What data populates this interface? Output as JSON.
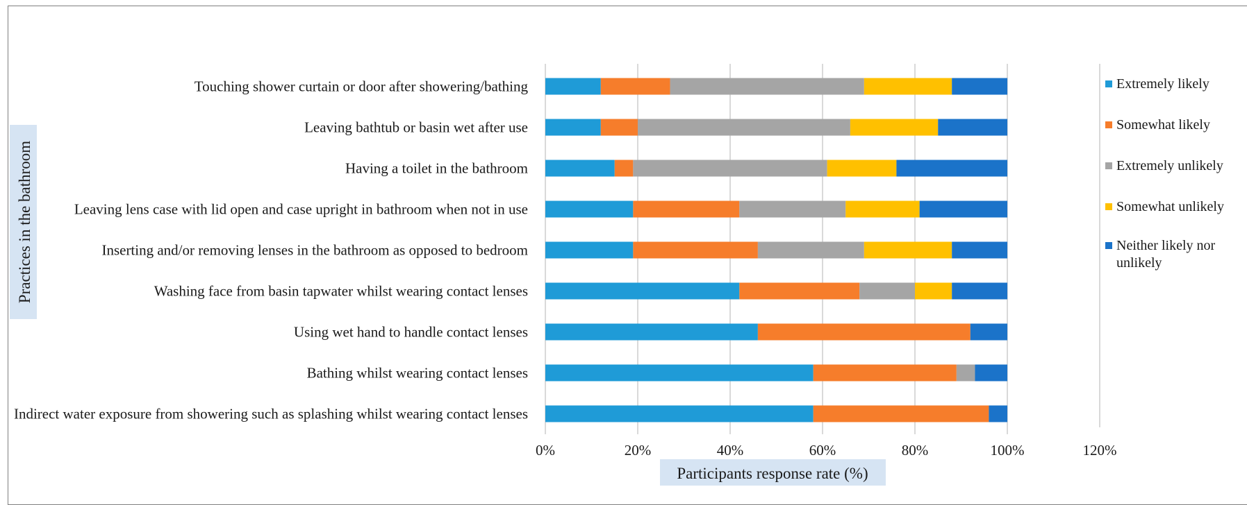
{
  "chart_data": {
    "type": "bar",
    "stacked": true,
    "orientation": "horizontal",
    "title": "",
    "xlabel": "Participants response rate (%)",
    "ylabel": "Practices in the bathroom",
    "xlim": [
      0,
      120
    ],
    "xticks": [
      "0%",
      "20%",
      "40%",
      "60%",
      "80%",
      "100%",
      "120%"
    ],
    "grid": "vertical",
    "legend_position": "right",
    "categories": [
      "Touching shower curtain or door after showering/bathing",
      "Leaving bathtub or basin wet after use",
      "Having a toilet in the bathroom",
      "Leaving lens case with lid open and case upright in bathroom when not in use",
      "Inserting and/or removing lenses in the bathroom as opposed to bedroom",
      "Washing face from basin tapwater whilst wearing contact lenses",
      "Using wet hand to handle contact lenses",
      "Bathing whilst wearing contact lenses",
      "Indirect water exposure from showering such as splashing whilst wearing contact lenses"
    ],
    "series": [
      {
        "name": "Extremely likely",
        "color": "#1f9bd7",
        "values": [
          12,
          12,
          15,
          19,
          19,
          42,
          46,
          58,
          58
        ]
      },
      {
        "name": "Somewhat likely",
        "color": "#f67d2b",
        "values": [
          15,
          8,
          4,
          23,
          27,
          26,
          46,
          31,
          38
        ]
      },
      {
        "name": "Extremely unlikely",
        "color": "#a5a5a5",
        "values": [
          42,
          46,
          42,
          23,
          23,
          12,
          0,
          4,
          0
        ]
      },
      {
        "name": "Somewhat unlikely",
        "color": "#ffc000",
        "values": [
          19,
          19,
          15,
          16,
          19,
          8,
          0,
          0,
          0
        ]
      },
      {
        "name": "Neither likely nor unlikely",
        "color": "#1b73c9",
        "values": [
          12,
          15,
          24,
          19,
          12,
          12,
          8,
          7,
          4
        ]
      }
    ]
  }
}
